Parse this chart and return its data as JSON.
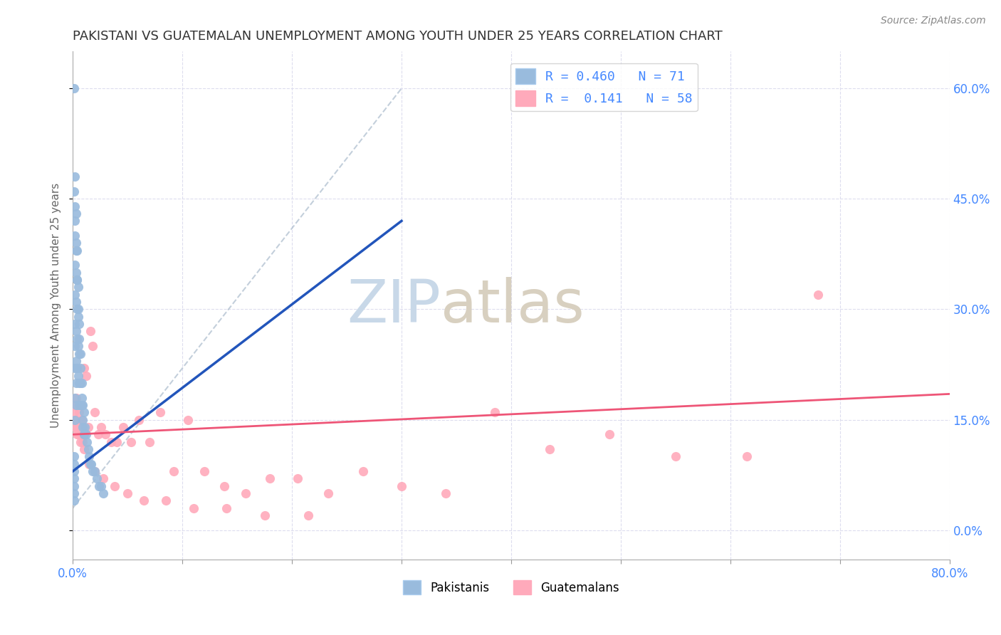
{
  "title": "PAKISTANI VS GUATEMALAN UNEMPLOYMENT AMONG YOUTH UNDER 25 YEARS CORRELATION CHART",
  "source": "Source: ZipAtlas.com",
  "ylabel": "Unemployment Among Youth under 25 years",
  "xmin": 0.0,
  "xmax": 0.8,
  "ymin": -0.04,
  "ymax": 0.65,
  "yticks": [
    0.0,
    0.15,
    0.3,
    0.45,
    0.6
  ],
  "xtick_positions": [
    0.0,
    0.1,
    0.2,
    0.3,
    0.4,
    0.5,
    0.6,
    0.7,
    0.8
  ],
  "color_pakistani": "#99BBDD",
  "color_guatemalan": "#FFAABB",
  "color_trendline_pak": "#2255BB",
  "color_trendline_gua": "#EE5577",
  "color_axis_labels": "#4488FF",
  "color_title": "#333333",
  "color_grid": "#DDDDEE",
  "watermark_zip_color": "#C8D8E8",
  "watermark_atlas_color": "#C8D8E8",
  "pakistani_x": [
    0.001,
    0.001,
    0.001,
    0.001,
    0.001,
    0.001,
    0.001,
    0.001,
    0.002,
    0.002,
    0.002,
    0.002,
    0.002,
    0.002,
    0.002,
    0.002,
    0.002,
    0.002,
    0.003,
    0.003,
    0.003,
    0.003,
    0.003,
    0.003,
    0.003,
    0.003,
    0.004,
    0.004,
    0.004,
    0.004,
    0.004,
    0.005,
    0.005,
    0.005,
    0.005,
    0.006,
    0.006,
    0.006,
    0.006,
    0.007,
    0.007,
    0.007,
    0.008,
    0.008,
    0.009,
    0.009,
    0.01,
    0.01,
    0.011,
    0.012,
    0.013,
    0.014,
    0.015,
    0.016,
    0.017,
    0.018,
    0.02,
    0.022,
    0.024,
    0.026,
    0.028,
    0.001,
    0.002,
    0.003,
    0.004,
    0.005,
    0.006,
    0.007,
    0.008,
    0.009,
    0.01
  ],
  "pakistani_y": [
    0.6,
    0.1,
    0.09,
    0.08,
    0.07,
    0.06,
    0.05,
    0.04,
    0.48,
    0.44,
    0.4,
    0.36,
    0.32,
    0.28,
    0.25,
    0.22,
    0.18,
    0.15,
    0.43,
    0.39,
    0.35,
    0.31,
    0.27,
    0.23,
    0.2,
    0.17,
    0.38,
    0.34,
    0.3,
    0.26,
    0.22,
    0.33,
    0.29,
    0.25,
    0.21,
    0.28,
    0.24,
    0.2,
    0.17,
    0.24,
    0.2,
    0.17,
    0.2,
    0.17,
    0.17,
    0.14,
    0.16,
    0.13,
    0.14,
    0.13,
    0.12,
    0.11,
    0.1,
    0.09,
    0.09,
    0.08,
    0.08,
    0.07,
    0.06,
    0.06,
    0.05,
    0.46,
    0.42,
    0.38,
    0.34,
    0.3,
    0.26,
    0.22,
    0.18,
    0.15,
    0.13
  ],
  "guatemalan_x": [
    0.001,
    0.002,
    0.003,
    0.004,
    0.005,
    0.006,
    0.007,
    0.008,
    0.009,
    0.01,
    0.012,
    0.014,
    0.016,
    0.018,
    0.02,
    0.023,
    0.026,
    0.03,
    0.035,
    0.04,
    0.046,
    0.053,
    0.06,
    0.07,
    0.08,
    0.092,
    0.105,
    0.12,
    0.138,
    0.158,
    0.18,
    0.205,
    0.233,
    0.265,
    0.3,
    0.34,
    0.385,
    0.435,
    0.49,
    0.55,
    0.615,
    0.68,
    0.002,
    0.004,
    0.007,
    0.01,
    0.015,
    0.02,
    0.028,
    0.038,
    0.05,
    0.065,
    0.085,
    0.11,
    0.14,
    0.175,
    0.215,
    0.003
  ],
  "guatemalan_y": [
    0.16,
    0.17,
    0.15,
    0.14,
    0.13,
    0.16,
    0.14,
    0.15,
    0.12,
    0.22,
    0.21,
    0.14,
    0.27,
    0.25,
    0.16,
    0.13,
    0.14,
    0.13,
    0.12,
    0.12,
    0.14,
    0.12,
    0.15,
    0.12,
    0.16,
    0.08,
    0.15,
    0.08,
    0.06,
    0.05,
    0.07,
    0.07,
    0.05,
    0.08,
    0.06,
    0.05,
    0.16,
    0.11,
    0.13,
    0.1,
    0.1,
    0.32,
    0.14,
    0.13,
    0.12,
    0.11,
    0.09,
    0.08,
    0.07,
    0.06,
    0.05,
    0.04,
    0.04,
    0.03,
    0.03,
    0.02,
    0.02,
    0.18
  ],
  "pak_trend_x0": 0.0,
  "pak_trend_x1": 0.3,
  "pak_trend_y0": 0.08,
  "pak_trend_y1": 0.42,
  "gua_trend_x0": 0.0,
  "gua_trend_x1": 0.8,
  "gua_trend_y0": 0.13,
  "gua_trend_y1": 0.185,
  "ref_line_x0": 0.0,
  "ref_line_x1": 0.3,
  "ref_line_y0": 0.03,
  "ref_line_y1": 0.6
}
